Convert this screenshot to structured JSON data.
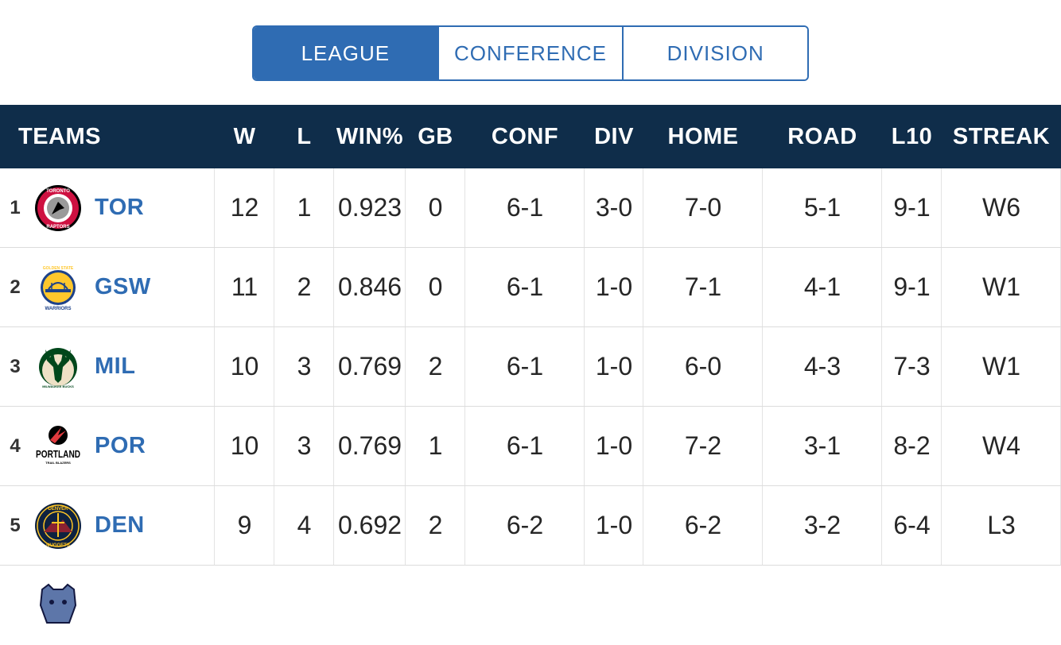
{
  "tabs": [
    {
      "label": "LEAGUE",
      "active": true
    },
    {
      "label": "CONFERENCE",
      "active": false
    },
    {
      "label": "DIVISION",
      "active": false
    }
  ],
  "headers": {
    "teams": "TEAMS",
    "w": "W",
    "l": "L",
    "winpct": "WIN%",
    "gb": "GB",
    "conf": "CONF",
    "div": "DIV",
    "home": "HOME",
    "road": "ROAD",
    "l10": "L10",
    "streak": "STREAK"
  },
  "rows": [
    {
      "rank": "1",
      "logo": "raptors-logo-icon",
      "team": "TOR",
      "w": "12",
      "l": "1",
      "winpct": "0.923",
      "gb": "0",
      "conf": "6-1",
      "div": "3-0",
      "home": "7-0",
      "road": "5-1",
      "l10": "9-1",
      "streak": "W6"
    },
    {
      "rank": "2",
      "logo": "warriors-logo-icon",
      "team": "GSW",
      "w": "11",
      "l": "2",
      "winpct": "0.846",
      "gb": "0",
      "conf": "6-1",
      "div": "1-0",
      "home": "7-1",
      "road": "4-1",
      "l10": "9-1",
      "streak": "W1"
    },
    {
      "rank": "3",
      "logo": "bucks-logo-icon",
      "team": "MIL",
      "w": "10",
      "l": "3",
      "winpct": "0.769",
      "gb": "2",
      "conf": "6-1",
      "div": "1-0",
      "home": "6-0",
      "road": "4-3",
      "l10": "7-3",
      "streak": "W1"
    },
    {
      "rank": "4",
      "logo": "blazers-logo-icon",
      "team": "POR",
      "w": "10",
      "l": "3",
      "winpct": "0.769",
      "gb": "1",
      "conf": "6-1",
      "div": "1-0",
      "home": "7-2",
      "road": "3-1",
      "l10": "8-2",
      "streak": "W4"
    },
    {
      "rank": "5",
      "logo": "nuggets-logo-icon",
      "team": "DEN",
      "w": "9",
      "l": "4",
      "winpct": "0.692",
      "gb": "2",
      "conf": "6-2",
      "div": "1-0",
      "home": "6-2",
      "road": "3-2",
      "l10": "6-4",
      "streak": "L3"
    }
  ],
  "partial_row": {
    "logo": "grizzlies-logo-icon"
  },
  "logo_text": {
    "raptors": [
      "TORONTO",
      "RAPTORS"
    ],
    "warriors": [
      "GOLDEN STATE",
      "WARRIORS"
    ],
    "bucks": [
      "MILWAUKEE BUCKS"
    ],
    "blazers": [
      "PORTLAND",
      "TRAIL BLAZERS"
    ],
    "nuggets": [
      "DENVER",
      "NUGGETS"
    ]
  },
  "colors": {
    "accent": "#2f6cb3",
    "header_bg": "#0f2d4a",
    "raptors": "#ce1141",
    "warriors_blue": "#1d428a",
    "warriors_gold": "#ffc72c",
    "bucks_green": "#00471b",
    "bucks_cream": "#eee1c6",
    "blazers_red": "#e03a3e",
    "nuggets_navy": "#0e2240",
    "nuggets_gold": "#fec524"
  }
}
